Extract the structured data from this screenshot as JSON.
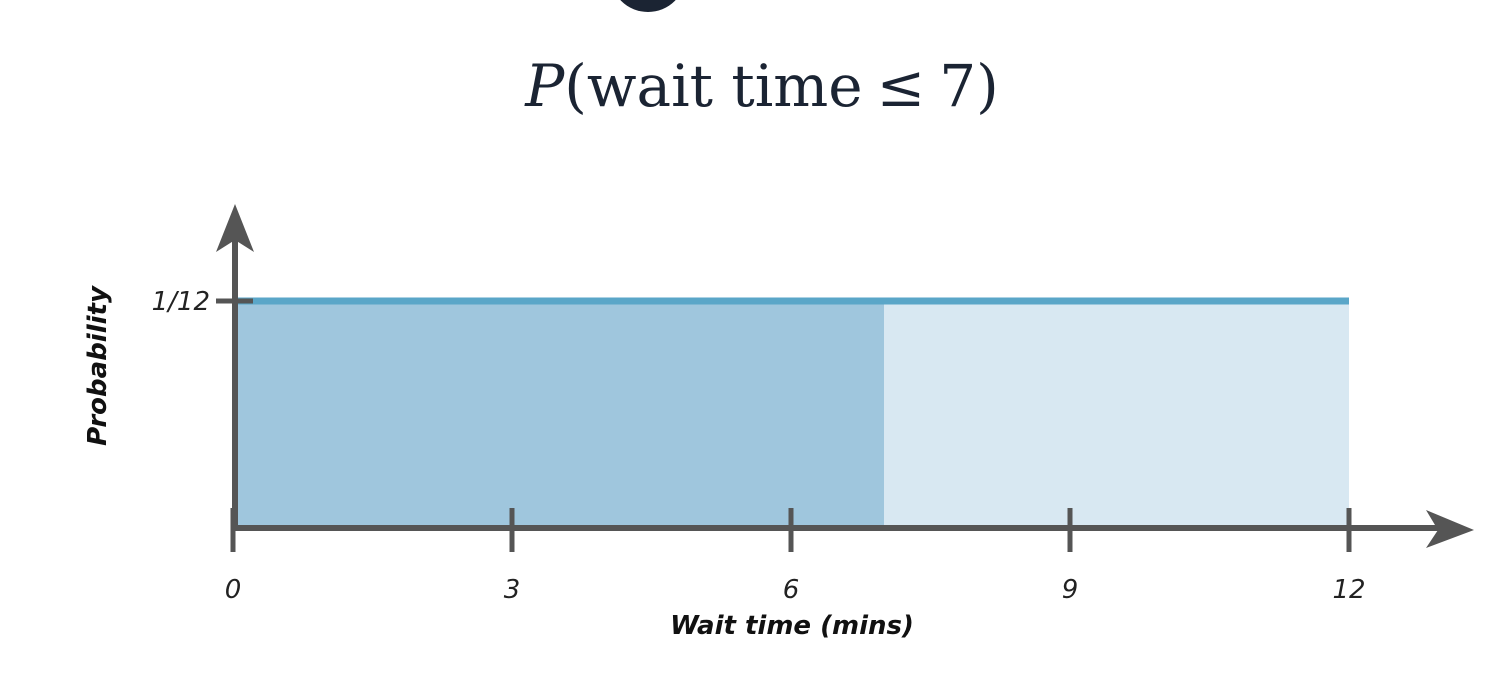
{
  "chart_data": {
    "type": "area",
    "title": {
      "func": "P",
      "open": "(",
      "text": "wait time",
      "op": "≤",
      "value": "7",
      "close": ")"
    },
    "xlabel": "Wait time (mins)",
    "ylabel": "Probability",
    "xlim": [
      0,
      12
    ],
    "x_ticks": [
      {
        "value": 0,
        "label": "0"
      },
      {
        "value": 3,
        "label": "3"
      },
      {
        "value": 6,
        "label": "6"
      },
      {
        "value": 9,
        "label": "9"
      },
      {
        "value": 12,
        "label": "12"
      }
    ],
    "y_ticks": [
      {
        "value": 0.0833333,
        "label": "1/12"
      }
    ],
    "density": {
      "x": [
        0,
        12
      ],
      "y": 0.0833333
    },
    "shaded_region": {
      "x": [
        0,
        7
      ]
    },
    "colors": {
      "shaded": "#9fc6dd",
      "unshaded": "#d8e8f2",
      "density_line": "#5aa6c8",
      "axis": "#555555",
      "title": "#1b2433"
    }
  }
}
